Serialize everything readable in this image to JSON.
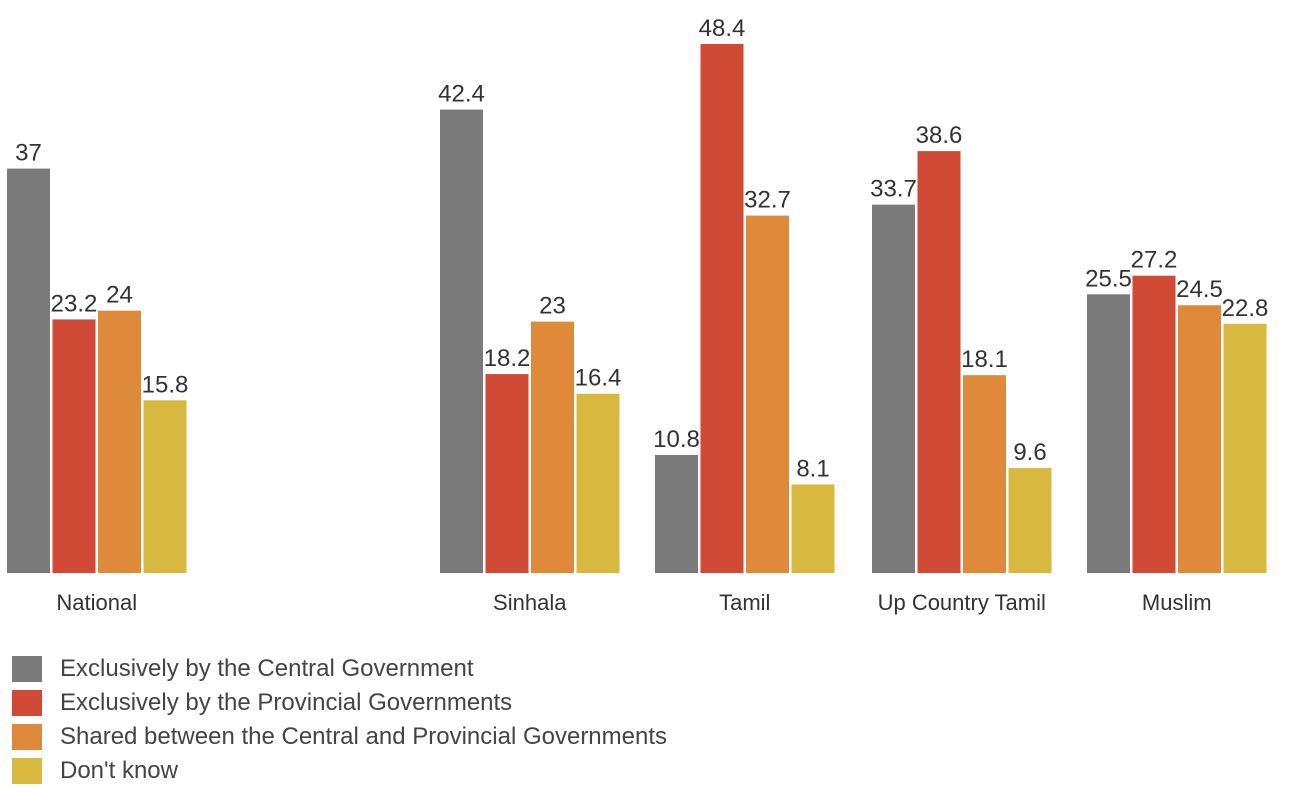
{
  "chart_data": {
    "type": "bar",
    "categories": [
      "National",
      "Sinhala",
      "Tamil",
      "Up Country Tamil",
      "Muslim"
    ],
    "series": [
      {
        "name": "Exclusively by the Central Government",
        "values": [
          37,
          42.4,
          10.8,
          33.7,
          25.5
        ],
        "color": "#7b7b7b"
      },
      {
        "name": "Exclusively by the Provincial Governments",
        "values": [
          23.2,
          18.2,
          48.4,
          38.6,
          27.2
        ],
        "color": "#d04a35"
      },
      {
        "name": "Shared between the Central and Provincial Governments",
        "values": [
          24,
          23,
          32.7,
          18.1,
          24.5
        ],
        "color": "#de8a3a"
      },
      {
        "name": "Don't know",
        "values": [
          15.8,
          16.4,
          8.1,
          9.6,
          22.8
        ],
        "color": "#d8b83e"
      }
    ],
    "value_labels": [
      [
        "37",
        "42.4",
        "10.8",
        "33.7",
        "25.5"
      ],
      [
        "23.2",
        "18.2",
        "48.4",
        "38.6",
        "27.2"
      ],
      [
        "24",
        "23",
        "32.7",
        "18.1",
        "24.5"
      ],
      [
        "15.8",
        "16.4",
        "8.1",
        "9.6",
        "22.8"
      ]
    ],
    "ylim": [
      0,
      50
    ],
    "grid": false,
    "legend_position": "bottom-left"
  }
}
